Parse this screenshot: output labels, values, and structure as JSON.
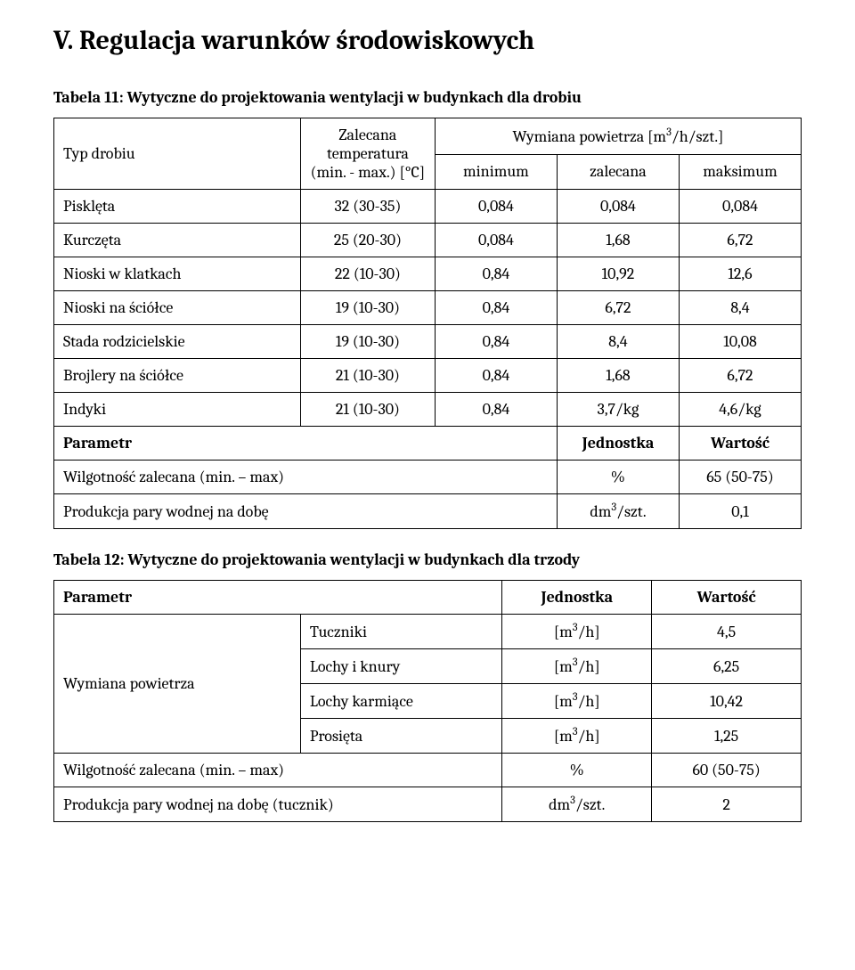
{
  "section_heading": "V. Regulacja warunków środowiskowych",
  "table11": {
    "caption": "Tabela 11: Wytyczne do projektowania wentylacji w budynkach dla drobiu",
    "col_headers": {
      "typ_drobiu": "Typ drobiu",
      "zalecana_temp_line1": "Zalecana",
      "zalecana_temp_line2": "temperatura",
      "zalecana_temp_line3": "(min. - max.) [°C]",
      "wymiana_pow": "Wymiana powietrza [m",
      "wymiana_pow_sup": "3",
      "wymiana_pow_tail": "/h/szt.]",
      "minimum": "minimum",
      "zalecana": "zalecana",
      "maksimum": "maksimum"
    },
    "rows": [
      {
        "name": "Pisklęta",
        "temp": "32 (30-35)",
        "min": "0,084",
        "zal": "0,084",
        "max": "0,084"
      },
      {
        "name": "Kurczęta",
        "temp": "25 (20-30)",
        "min": "0,084",
        "zal": "1,68",
        "max": "6,72"
      },
      {
        "name": "Nioski w klatkach",
        "temp": "22 (10-30)",
        "min": "0,84",
        "zal": "10,92",
        "max": "12,6"
      },
      {
        "name": "Nioski na ściółce",
        "temp": "19 (10-30)",
        "min": "0,84",
        "zal": "6,72",
        "max": "8,4"
      },
      {
        "name": "Stada rodzicielskie",
        "temp": "19 (10-30)",
        "min": "0,84",
        "zal": "8,4",
        "max": "10,08"
      },
      {
        "name": "Brojlery na ściółce",
        "temp": "21 (10-30)",
        "min": "0,84",
        "zal": "1,68",
        "max": "6,72"
      },
      {
        "name": "Indyki",
        "temp": "21 (10-30)",
        "min": "0,84",
        "zal": "3,7/kg",
        "max": "4,6/kg"
      }
    ],
    "param_header": {
      "parametr": "Parametr",
      "jednostka": "Jednostka",
      "wartosc": "Wartość"
    },
    "param_rows": {
      "wilg": {
        "label": "Wilgotność zalecana (min. – max)",
        "unit": "%",
        "value": "65 (50-75)"
      },
      "para": {
        "label": "Produkcja pary wodnej na dobę",
        "unit_pre": "dm",
        "unit_sup": "3",
        "unit_post": "/szt.",
        "value": "0,1"
      }
    }
  },
  "table12": {
    "caption": "Tabela 12: Wytyczne do projektowania wentylacji w budynkach dla trzody",
    "header": {
      "parametr": "Parametr",
      "jednostka": "Jednostka",
      "wartosc": "Wartość"
    },
    "wymiana_label": "Wymiana powietrza",
    "rows": [
      {
        "cat": "Tuczniki",
        "unit_pre": "[m",
        "unit_sup": "3",
        "unit_post": "/h]",
        "value": "4,5"
      },
      {
        "cat": "Lochy i knury",
        "unit_pre": "[m",
        "unit_sup": "3",
        "unit_post": "/h]",
        "value": "6,25"
      },
      {
        "cat": "Lochy karmiące",
        "unit_pre": "[m",
        "unit_sup": "3",
        "unit_post": "/h]",
        "value": "10,42"
      },
      {
        "cat": "Prosięta",
        "unit_pre": "[m",
        "unit_sup": "3",
        "unit_post": "/h]",
        "value": "1,25"
      }
    ],
    "wilg": {
      "label": "Wilgotność zalecana (min. – max)",
      "unit": "%",
      "value": "60 (50-75)"
    },
    "para": {
      "label": "Produkcja pary wodnej na dobę (tucznik)",
      "unit_pre": "dm",
      "unit_sup": "3",
      "unit_post": "/szt.",
      "value": "2"
    }
  }
}
